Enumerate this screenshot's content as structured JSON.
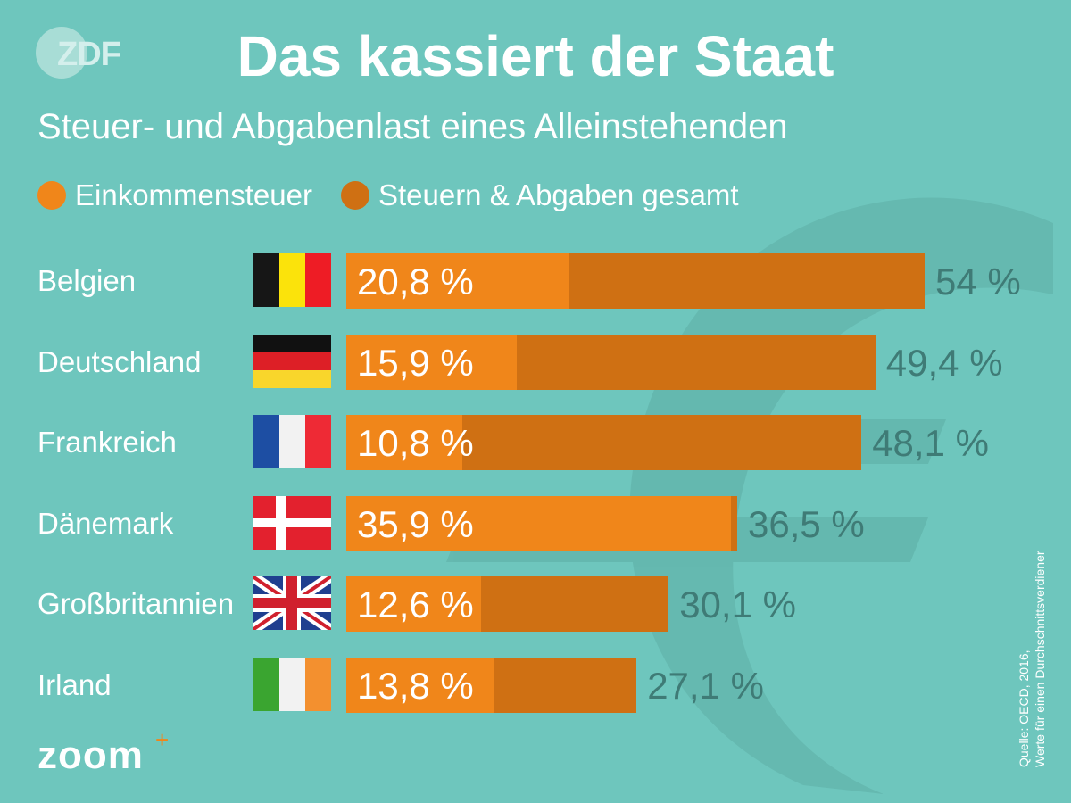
{
  "header": {
    "logo_text": "ZDF",
    "title": "Das kassiert der Staat",
    "subtitle": "Steuer- und Abgabenlast eines Alleinstehenden"
  },
  "legend": [
    {
      "label": "Einkommensteuer",
      "color": "#f0861a"
    },
    {
      "label": "Steuern & Abgaben gesamt",
      "color": "#cf7013"
    }
  ],
  "colors": {
    "background": "#6ec6bd",
    "income": "#f0861a",
    "total": "#cf7013",
    "total_label": "#3f7b76"
  },
  "chart_data": {
    "type": "bar",
    "orientation": "horizontal",
    "title": "Das kassiert der Staat",
    "subtitle": "Steuer- und Abgabenlast eines Alleinstehenden",
    "unit": "%",
    "categories": [
      "Belgien",
      "Deutschland",
      "Frankreich",
      "Dänemark",
      "Großbritannien",
      "Irland"
    ],
    "series": [
      {
        "name": "Einkommensteuer",
        "values": [
          20.8,
          15.9,
          10.8,
          35.9,
          12.6,
          13.8
        ],
        "color": "#f0861a"
      },
      {
        "name": "Steuern & Abgaben gesamt",
        "values": [
          54,
          49.4,
          48.1,
          36.5,
          30.1,
          27.1
        ],
        "color": "#cf7013"
      }
    ],
    "labels": {
      "income": [
        "20,8 %",
        "15,9 %",
        "10,8 %",
        "35,9 %",
        "12,6 %",
        "13,8 %"
      ],
      "total": [
        "54 %",
        "49,4 %",
        "48,1 %",
        "36,5 %",
        "30,1 %",
        "27,1 %"
      ]
    },
    "flags": [
      "belgium-flag-icon",
      "germany-flag-icon",
      "france-flag-icon",
      "denmark-flag-icon",
      "uk-flag-icon",
      "ireland-flag-icon"
    ],
    "overlay": true,
    "legend_position": "top-left",
    "grid": false
  },
  "source": {
    "line1": "Quelle: OECD, 2016,",
    "line2": "Werte für einen Durchschnittsverdiener"
  },
  "footer": {
    "logo_text": "zoom",
    "logo_plus": "+"
  }
}
